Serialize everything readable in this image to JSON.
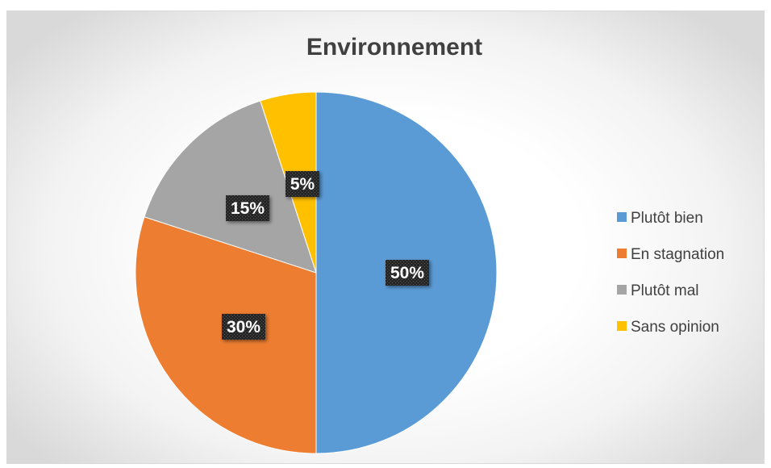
{
  "chart_data": {
    "type": "pie",
    "title": "Environnement",
    "categories": [
      "Plutôt bien",
      "En stagnation",
      "Plutôt mal",
      "Sans opinion"
    ],
    "values": [
      50,
      30,
      15,
      5
    ],
    "data_labels": [
      "50%",
      "30%",
      "15%",
      "5%"
    ],
    "colors": [
      "#5B9BD5",
      "#ED7D31",
      "#A5A5A5",
      "#FFC000"
    ],
    "legend_position": "right",
    "start_angle": "top, clockwise"
  }
}
